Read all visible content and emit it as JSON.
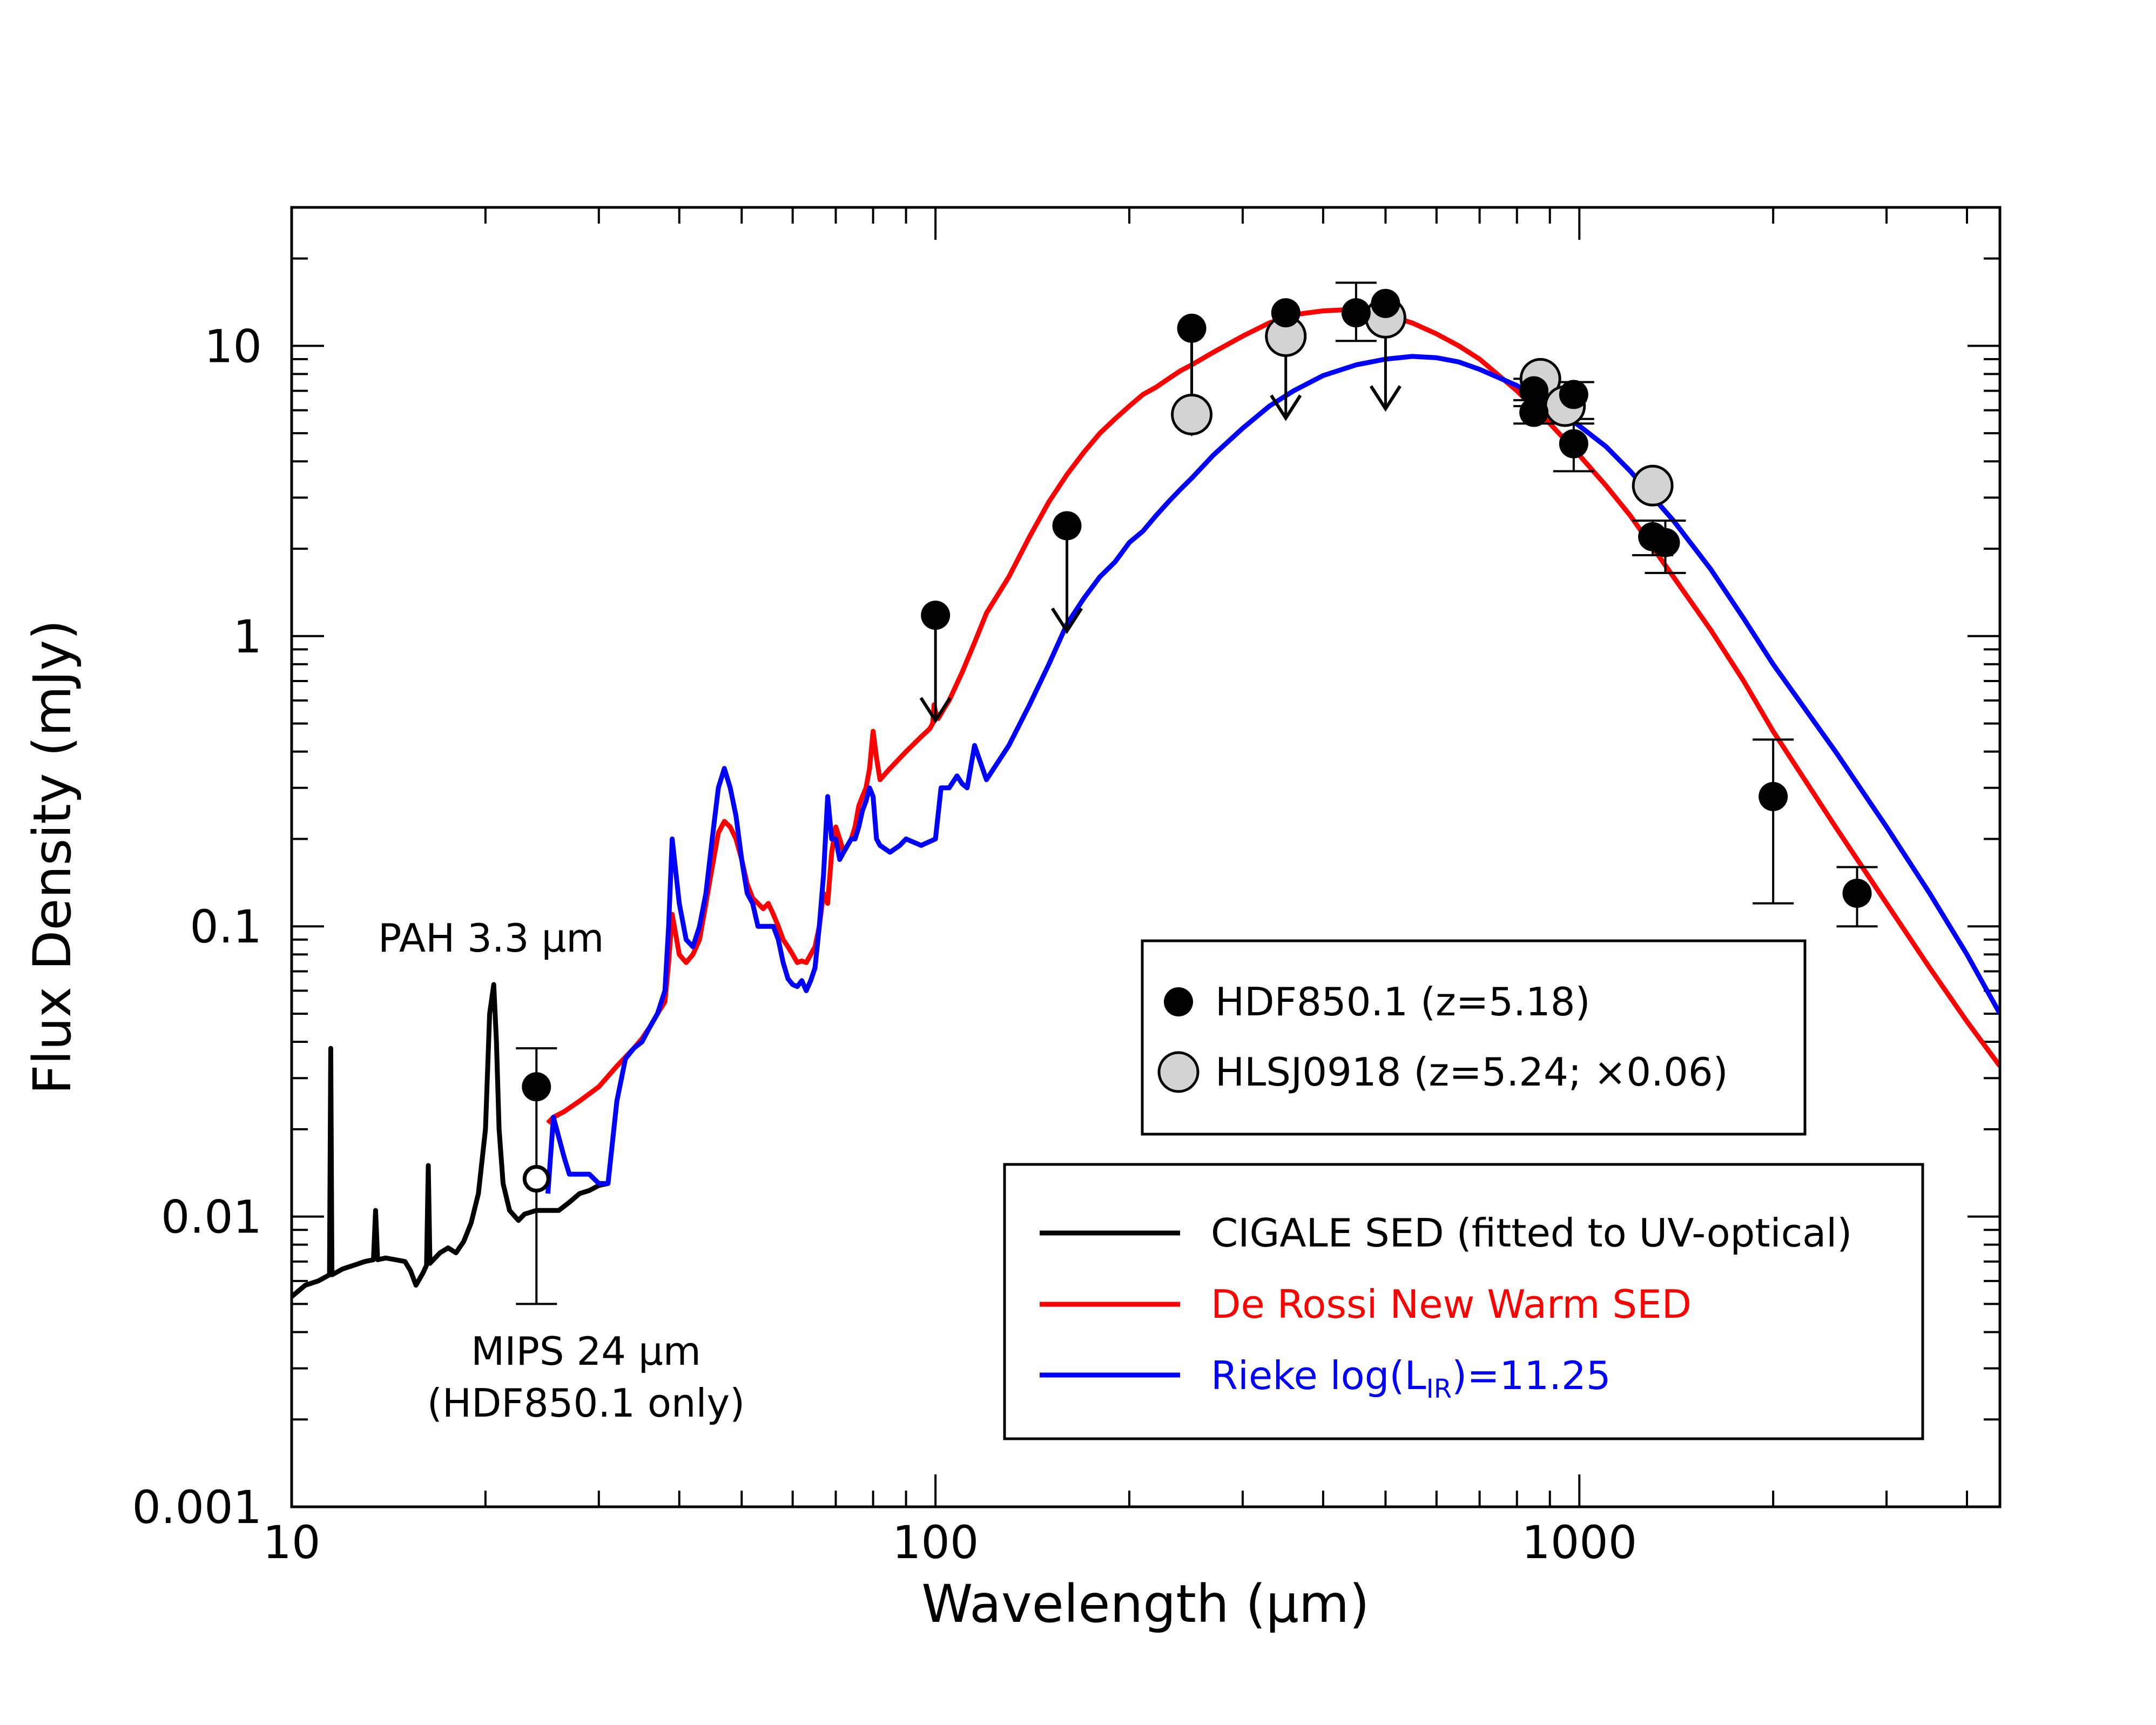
{
  "chart_data": {
    "type": "scatter",
    "xscale": "log",
    "yscale": "log",
    "xlim": [
      10,
      4500
    ],
    "ylim": [
      0.001,
      30
    ],
    "xlabel": "Wavelength (μm)",
    "ylabel": "Flux Density (mJy)",
    "x_ticks": [
      {
        "value": 10,
        "label": "10"
      },
      {
        "value": 100,
        "label": "100"
      },
      {
        "value": 1000,
        "label": "1000"
      }
    ],
    "y_ticks": [
      {
        "value": 0.001,
        "label": "0.001"
      },
      {
        "value": 0.01,
        "label": "0.01"
      },
      {
        "value": 0.1,
        "label": "0.1"
      },
      {
        "value": 1,
        "label": "1"
      },
      {
        "value": 10,
        "label": "10"
      }
    ],
    "annotations": {
      "pah": "PAH 3.3 μm",
      "mips_line1": "MIPS 24 μm",
      "mips_line2": "(HDF850.1 only)"
    },
    "legend_points": [
      {
        "label": "HDF850.1 (z=5.18)",
        "marker": "filled-circle",
        "color": "#000000"
      },
      {
        "label": "HLSJ0918 (z=5.24; ×0.06)",
        "marker": "open-circle",
        "color": "#d3d3d3"
      }
    ],
    "legend_lines": [
      {
        "label": "CIGALE SED (fitted to UV-optical)",
        "color": "#000000"
      },
      {
        "label": "De Rossi New Warm SED",
        "color": "#ff0000"
      },
      {
        "label": "Rieke log(L",
        "sub": "IR",
        "label_after": ")=11.25",
        "color": "#0000ff"
      }
    ],
    "hdf850_points": [
      {
        "x": 24,
        "y": 0.028,
        "err": [
          0.005,
          0.038
        ],
        "upper_limit": false
      },
      {
        "x": 100,
        "y": 1.18,
        "upper_limit": true
      },
      {
        "x": 160,
        "y": 2.4,
        "upper_limit": true
      },
      {
        "x": 250,
        "y": 11.5,
        "upper_limit": true
      },
      {
        "x": 350,
        "y": 13.0,
        "upper_limit": true
      },
      {
        "x": 450,
        "y": 13.0,
        "err": [
          10.4,
          16.5
        ],
        "upper_limit": false
      },
      {
        "x": 500,
        "y": 14.0,
        "upper_limit": true
      },
      {
        "x": 850,
        "y": 7.0,
        "err": [
          6.2,
          7.7
        ],
        "upper_limit": false
      },
      {
        "x": 850,
        "y": 5.9,
        "err": [
          5.4,
          6.5
        ],
        "upper_limit": false
      },
      {
        "x": 980,
        "y": 6.8,
        "err": [
          5.6,
          7.5
        ],
        "upper_limit": false
      },
      {
        "x": 980,
        "y": 4.6,
        "err": [
          3.7,
          5.4
        ],
        "upper_limit": false
      },
      {
        "x": 1300,
        "y": 2.2,
        "err": [
          1.9,
          2.5
        ],
        "upper_limit": false
      },
      {
        "x": 1360,
        "y": 2.1,
        "err": [
          1.65,
          2.5
        ],
        "upper_limit": false
      },
      {
        "x": 2000,
        "y": 0.28,
        "err": [
          0.12,
          0.44
        ],
        "upper_limit": false
      },
      {
        "x": 2700,
        "y": 0.13,
        "err": [
          0.1,
          0.16
        ],
        "upper_limit": false
      }
    ],
    "hdf850_mips_open": {
      "x": 24,
      "y": 0.0135
    },
    "hlsj0918_points": [
      {
        "x": 250,
        "y": 5.8
      },
      {
        "x": 350,
        "y": 10.8
      },
      {
        "x": 500,
        "y": 12.5
      },
      {
        "x": 870,
        "y": 7.7
      },
      {
        "x": 950,
        "y": 6.2
      },
      {
        "x": 1300,
        "y": 3.3
      }
    ],
    "series": [
      {
        "name": "CIGALE SED (fitted to UV-optical)",
        "color": "#000000",
        "x": [
          10,
          10.5,
          11,
          11.3,
          11.45,
          11.5,
          11.55,
          11.7,
          12,
          12.5,
          13,
          13.4,
          13.5,
          13.6,
          14,
          14.5,
          15,
          15.3,
          15.6,
          16,
          16.2,
          16.3,
          16.4,
          16.6,
          17,
          17.5,
          18,
          18.5,
          19,
          19.5,
          20,
          20.3,
          20.6,
          20.8,
          21,
          21.3,
          21.8,
          22.5,
          23,
          24,
          25,
          26,
          27,
          28,
          29,
          30,
          31
        ],
        "y": [
          0.0053,
          0.0058,
          0.006,
          0.0062,
          0.0063,
          0.038,
          0.0063,
          0.0064,
          0.0066,
          0.0068,
          0.007,
          0.0071,
          0.0105,
          0.0071,
          0.0072,
          0.0071,
          0.007,
          0.0065,
          0.0058,
          0.0064,
          0.0068,
          0.015,
          0.0069,
          0.0071,
          0.0075,
          0.0078,
          0.0075,
          0.0082,
          0.0095,
          0.012,
          0.02,
          0.05,
          0.063,
          0.04,
          0.02,
          0.013,
          0.0105,
          0.0097,
          0.0102,
          0.0105,
          0.0105,
          0.0105,
          0.0112,
          0.012,
          0.0123,
          0.0128,
          0.013
        ]
      },
      {
        "name": "De Rossi New Warm SED",
        "color": "#ff0000",
        "x": [
          25,
          25.5,
          26.5,
          28,
          30,
          32,
          34,
          35,
          36,
          37,
          38,
          38.5,
          39,
          40,
          41,
          42,
          43,
          44,
          45,
          46,
          47,
          48,
          49,
          50,
          51,
          52,
          53,
          54,
          55,
          56,
          57,
          58,
          59,
          60,
          61,
          62,
          63,
          64,
          65,
          66,
          67,
          68,
          69,
          70,
          71,
          72,
          73,
          74,
          75,
          76,
          77,
          78,
          79,
          80,
          81,
          82,
          85,
          90,
          95,
          98,
          99,
          99.5,
          100,
          101,
          103,
          105,
          110,
          115,
          120,
          130,
          140,
          150,
          160,
          170,
          180,
          190,
          200,
          210,
          220,
          230,
          240,
          250,
          270,
          300,
          330,
          360,
          400,
          430,
          460,
          500,
          550,
          600,
          650,
          700,
          800,
          900,
          1000,
          1100,
          1200,
          1400,
          1600,
          1800,
          2000,
          2500,
          3000,
          3500,
          4000,
          4500
        ],
        "y": [
          0.021,
          0.022,
          0.023,
          0.025,
          0.028,
          0.033,
          0.038,
          0.041,
          0.045,
          0.05,
          0.055,
          0.075,
          0.11,
          0.08,
          0.075,
          0.08,
          0.09,
          0.12,
          0.16,
          0.21,
          0.23,
          0.22,
          0.2,
          0.17,
          0.14,
          0.125,
          0.12,
          0.115,
          0.12,
          0.11,
          0.1,
          0.09,
          0.085,
          0.08,
          0.075,
          0.076,
          0.075,
          0.08,
          0.085,
          0.1,
          0.13,
          0.12,
          0.18,
          0.22,
          0.2,
          0.18,
          0.19,
          0.2,
          0.22,
          0.26,
          0.28,
          0.3,
          0.35,
          0.47,
          0.38,
          0.32,
          0.35,
          0.4,
          0.45,
          0.48,
          0.5,
          0.58,
          0.55,
          0.52,
          0.56,
          0.6,
          0.75,
          0.95,
          1.2,
          1.6,
          2.2,
          2.9,
          3.6,
          4.3,
          5.0,
          5.6,
          6.2,
          6.8,
          7.2,
          7.7,
          8.2,
          8.6,
          9.5,
          10.8,
          12.0,
          12.8,
          13.2,
          13.3,
          13.2,
          12.8,
          12.0,
          11.0,
          10.0,
          9.0,
          7.0,
          5.4,
          4.2,
          3.3,
          2.6,
          1.6,
          1.05,
          0.7,
          0.47,
          0.22,
          0.12,
          0.072,
          0.047,
          0.033
        ]
      },
      {
        "name": "Rieke log(L_IR)=11.25",
        "color": "#0000ff",
        "x": [
          25,
          25.5,
          26.5,
          27,
          28,
          29,
          30,
          31,
          32,
          33,
          34,
          35,
          36,
          37,
          38,
          38.5,
          39,
          40,
          41,
          42,
          43,
          44,
          45,
          46,
          47,
          48,
          49,
          50,
          51,
          52,
          53,
          54,
          55,
          56,
          57,
          58,
          59,
          60,
          61,
          62,
          63,
          64,
          65,
          66,
          67,
          68,
          69,
          70,
          71,
          72,
          73,
          74,
          75,
          76,
          77,
          78,
          79,
          80,
          81,
          82,
          85,
          88,
          90,
          95,
          100,
          102,
          105,
          108,
          110,
          112,
          115,
          120,
          130,
          140,
          150,
          160,
          170,
          180,
          190,
          200,
          210,
          220,
          230,
          240,
          250,
          270,
          300,
          330,
          360,
          400,
          450,
          500,
          550,
          600,
          650,
          700,
          800,
          900,
          1000,
          1100,
          1200,
          1400,
          1600,
          1800,
          2000,
          2500,
          3000,
          3500,
          4000,
          4500
        ],
        "y": [
          0.012,
          0.022,
          0.016,
          0.014,
          0.014,
          0.014,
          0.013,
          0.013,
          0.025,
          0.035,
          0.038,
          0.04,
          0.045,
          0.05,
          0.06,
          0.1,
          0.2,
          0.12,
          0.09,
          0.085,
          0.1,
          0.13,
          0.2,
          0.3,
          0.35,
          0.3,
          0.24,
          0.17,
          0.13,
          0.12,
          0.1,
          0.1,
          0.1,
          0.1,
          0.09,
          0.075,
          0.066,
          0.063,
          0.062,
          0.065,
          0.06,
          0.065,
          0.072,
          0.1,
          0.15,
          0.28,
          0.2,
          0.2,
          0.17,
          0.18,
          0.19,
          0.2,
          0.2,
          0.22,
          0.25,
          0.27,
          0.3,
          0.28,
          0.2,
          0.19,
          0.18,
          0.19,
          0.2,
          0.19,
          0.2,
          0.3,
          0.3,
          0.33,
          0.31,
          0.3,
          0.42,
          0.32,
          0.42,
          0.58,
          0.8,
          1.1,
          1.35,
          1.6,
          1.8,
          2.1,
          2.3,
          2.6,
          2.9,
          3.2,
          3.5,
          4.2,
          5.2,
          6.2,
          7.0,
          7.9,
          8.6,
          9.0,
          9.2,
          9.1,
          8.8,
          8.3,
          7.3,
          6.3,
          5.3,
          4.5,
          3.7,
          2.5,
          1.7,
          1.15,
          0.8,
          0.4,
          0.22,
          0.13,
          0.08,
          0.05
        ]
      }
    ]
  }
}
